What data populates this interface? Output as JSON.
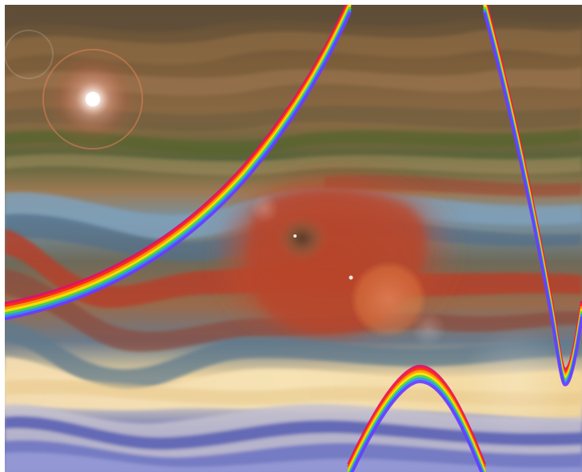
{
  "artwork": {
    "kind": "abstract-digital-art",
    "palette": {
      "background_dark": "#5a4a35",
      "band_brown": "#7a5a34",
      "band_olive": "#55623a",
      "band_steel_blue": "#6f8fa6",
      "band_red": "#b03a24",
      "band_cream": "#f0d7a0",
      "band_violet_blue": "#5b63b5",
      "sun_flare": "#ffffff",
      "rainbow": [
        "#e0106a",
        "#ff2a14",
        "#ff9a00",
        "#ffe600",
        "#44d84a",
        "#2a90ff",
        "#6a3cff"
      ]
    },
    "features": [
      "sun-flare",
      "swirl-eye",
      "rainbow-arc-left",
      "rainbow-arc-right",
      "rainbow-arc-bottom",
      "lens-flare-circles"
    ]
  }
}
